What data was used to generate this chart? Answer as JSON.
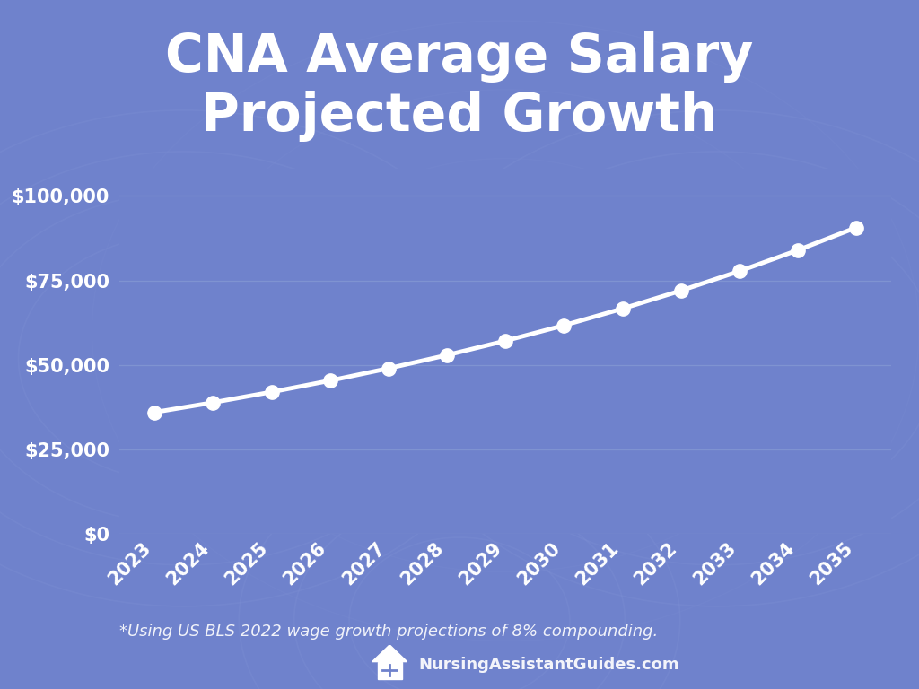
{
  "title_line1": "CNA Average Salary",
  "title_line2": "Projected Growth",
  "background_color": "#6f82cc",
  "line_color": "#ffffff",
  "marker_color": "#ffffff",
  "grid_color": "#8b9fd6",
  "text_color": "#ffffff",
  "tick_label_color": "#ffffff",
  "footnote": "*Using US BLS 2022 wage growth projections of 8% compounding.",
  "watermark_text": "NursingAssistantGuides.com",
  "years": [
    2023,
    2024,
    2025,
    2026,
    2027,
    2028,
    2029,
    2030,
    2031,
    2032,
    2033,
    2034,
    2035
  ],
  "base_salary": 36000,
  "growth_rate": 0.08,
  "yticks": [
    0,
    25000,
    50000,
    75000,
    100000
  ],
  "ylim": [
    0,
    108000
  ],
  "title_fontsize": 42,
  "tick_fontsize": 15,
  "footnote_fontsize": 13,
  "watermark_fontsize": 13,
  "line_width": 3.5,
  "marker_size": 11
}
